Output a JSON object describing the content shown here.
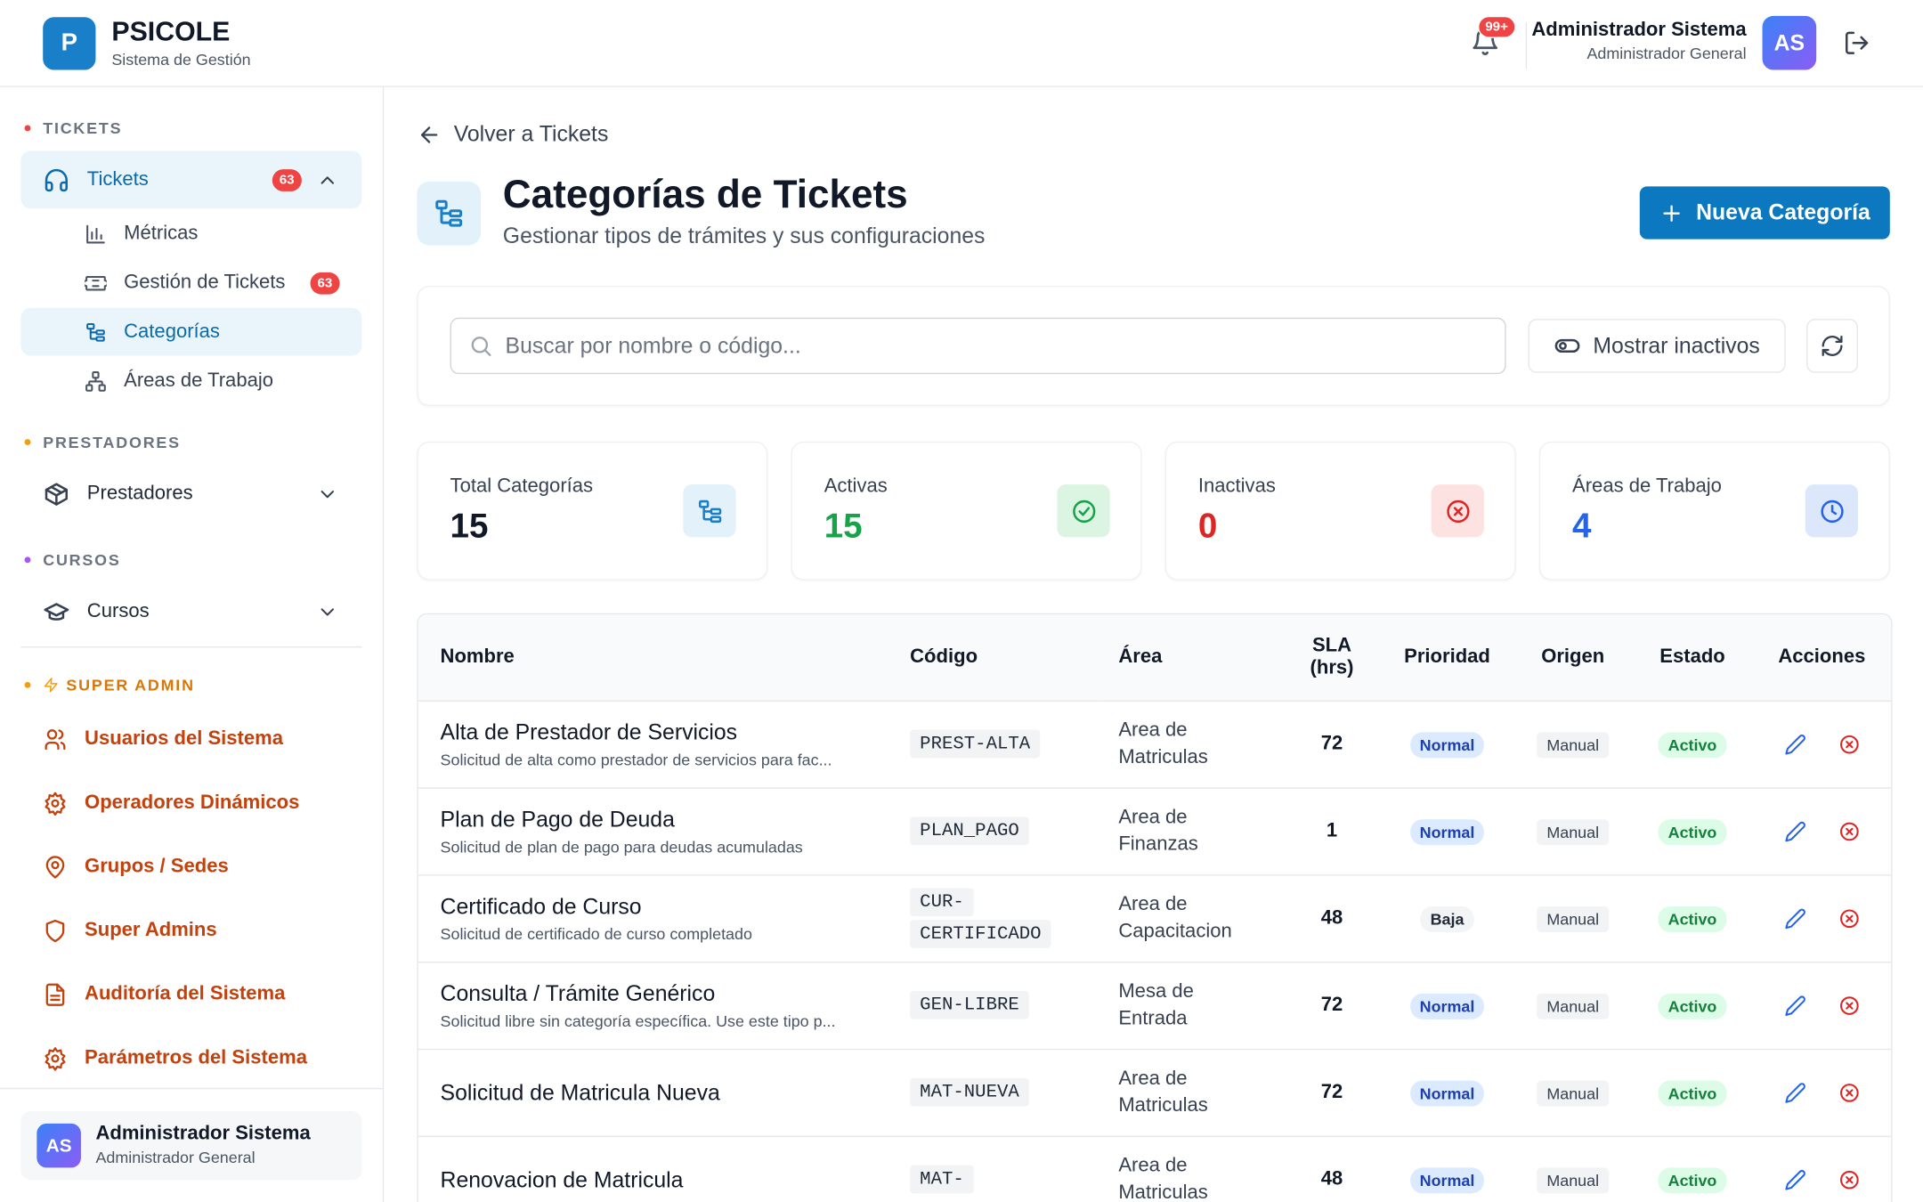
{
  "header": {
    "logo_letter": "P",
    "brand": "PSICOLE",
    "subtitle": "Sistema de Gestión",
    "notification_badge": "99+",
    "user_name": "Administrador Sistema",
    "user_role": "Administrador General",
    "avatar": "AS"
  },
  "sidebar": {
    "sections": [
      {
        "title": "TICKETS",
        "dot": "#ef4444",
        "items": [
          {
            "label": "Tickets",
            "icon": "headphones",
            "badge": 63,
            "expanded": true,
            "active": true
          }
        ],
        "subitems": [
          {
            "label": "Métricas",
            "icon": "chart"
          },
          {
            "label": "Gestión de Tickets",
            "icon": "ticket",
            "badge": 63
          },
          {
            "label": "Categorías",
            "icon": "tree",
            "active": true
          },
          {
            "label": "Áreas de Trabajo",
            "icon": "network"
          }
        ]
      },
      {
        "title": "PRESTADORES",
        "dot": "#f59e0b",
        "items": [
          {
            "label": "Prestadores",
            "icon": "box",
            "expanded": false
          }
        ]
      },
      {
        "title": "CURSOS",
        "dot": "#a855f7",
        "items": [
          {
            "label": "Cursos",
            "icon": "cap",
            "expanded": false
          }
        ]
      },
      {
        "title": "SUPER ADMIN",
        "dot": "#f59e0b",
        "admin": true,
        "items": [
          {
            "label": "Usuarios del Sistema",
            "icon": "users"
          },
          {
            "label": "Operadores Dinámicos",
            "icon": "gear"
          },
          {
            "label": "Grupos / Sedes",
            "icon": "pin"
          },
          {
            "label": "Super Admins",
            "icon": "shield"
          },
          {
            "label": "Auditoría del Sistema",
            "icon": "file"
          },
          {
            "label": "Parámetros del Sistema",
            "icon": "gear"
          }
        ]
      }
    ],
    "footer": {
      "avatar": "AS",
      "name": "Administrador Sistema",
      "role": "Administrador General"
    }
  },
  "main": {
    "back": "Volver a Tickets",
    "title": "Categorías de Tickets",
    "subtitle": "Gestionar tipos de trámites y sus configuraciones",
    "new_button": "Nueva Categoría",
    "search_placeholder": "Buscar por nombre o código...",
    "toggle": "Mostrar inactivos",
    "stats": [
      {
        "label": "Total Categorías",
        "value": 15,
        "color": "#111827",
        "icon": "tree",
        "icon_color": "#1a7fc9",
        "icon_bg": "#e3f1fa"
      },
      {
        "label": "Activas",
        "value": 15,
        "color": "#16a34a",
        "icon": "check",
        "icon_color": "#16a34a",
        "icon_bg": "#dcf5e3"
      },
      {
        "label": "Inactivas",
        "value": 0,
        "color": "#dc2626",
        "icon": "xcircle",
        "icon_color": "#dc2626",
        "icon_bg": "#fde2e2"
      },
      {
        "label": "Áreas de Trabajo",
        "value": 4,
        "color": "#2563eb",
        "icon": "clock",
        "icon_color": "#2563eb",
        "icon_bg": "#dde7fb"
      }
    ],
    "table": {
      "headers": [
        "Nombre",
        "Código",
        "Área",
        "SLA (hrs)",
        "Prioridad",
        "Origen",
        "Estado",
        "Acciones"
      ],
      "rows": [
        {
          "name": "Alta de Prestador de Servicios",
          "description": "Solicitud de alta como prestador de servicios para fac...",
          "code": "PREST-ALTA",
          "area": "Area de Matriculas",
          "sla": 72,
          "priority": "Normal",
          "origin": "Manual",
          "status": "Activo"
        },
        {
          "name": "Plan de Pago de Deuda",
          "description": "Solicitud de plan de pago para deudas acumuladas",
          "code": "PLAN_PAGO",
          "area": "Area de Finanzas",
          "sla": 1,
          "priority": "Normal",
          "origin": "Manual",
          "status": "Activo"
        },
        {
          "name": "Certificado de Curso",
          "description": "Solicitud de certificado de curso completado",
          "code": "CUR-CERTIFICADO",
          "area": "Area de Capacitacion",
          "sla": 48,
          "priority": "Baja",
          "origin": "Manual",
          "status": "Activo"
        },
        {
          "name": "Consulta / Trámite Genérico",
          "description": "Solicitud libre sin categoría específica. Use este tipo p...",
          "code": "GEN-LIBRE",
          "area": "Mesa de Entrada",
          "sla": 72,
          "priority": "Normal",
          "origin": "Manual",
          "status": "Activo"
        },
        {
          "name": "Solicitud de Matricula Nueva",
          "code": "MAT-NUEVA",
          "area": "Area de Matriculas",
          "sla": 72,
          "priority": "Normal",
          "origin": "Manual",
          "status": "Activo"
        },
        {
          "name": "Renovacion de Matricula",
          "code": "MAT-",
          "area": "Area de Matriculas",
          "sla": 48,
          "priority": "Normal",
          "origin": "Manual",
          "status": "Activo"
        }
      ]
    }
  }
}
